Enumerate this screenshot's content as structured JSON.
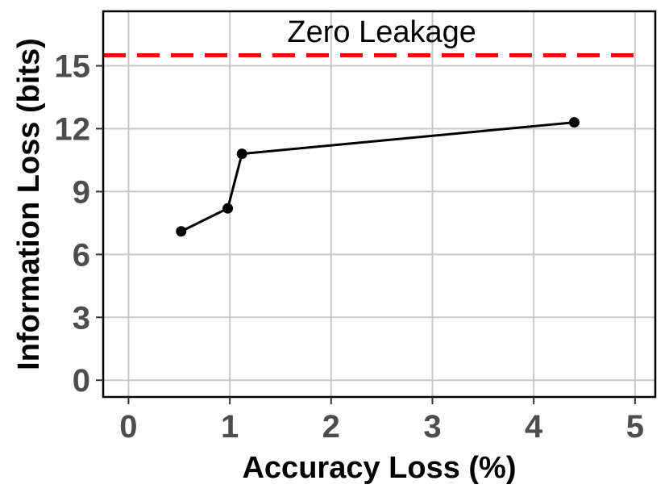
{
  "chart_data": {
    "type": "line",
    "xlabel": "Accuracy Loss (%)",
    "ylabel": "Information Loss (bits)",
    "xlim": [
      -0.25,
      5.2
    ],
    "ylim": [
      -0.8,
      17.6
    ],
    "x_ticks": [
      0,
      1,
      2,
      3,
      4,
      5
    ],
    "y_ticks": [
      0,
      3,
      6,
      9,
      12,
      15
    ],
    "x_tick_labels": [
      "0",
      "1",
      "2",
      "3",
      "4",
      "5"
    ],
    "y_tick_labels": [
      "0",
      "3",
      "6",
      "9",
      "12",
      "15"
    ],
    "grid": true,
    "series": [
      {
        "x": [
          0.52,
          0.98,
          1.12,
          4.4
        ],
        "y": [
          7.1,
          8.2,
          10.8,
          12.3
        ],
        "color": "#000000"
      }
    ],
    "reference_line": {
      "y": 15.5,
      "label": "Zero Leakage",
      "color": "#ff0000",
      "style": "dashed"
    }
  }
}
